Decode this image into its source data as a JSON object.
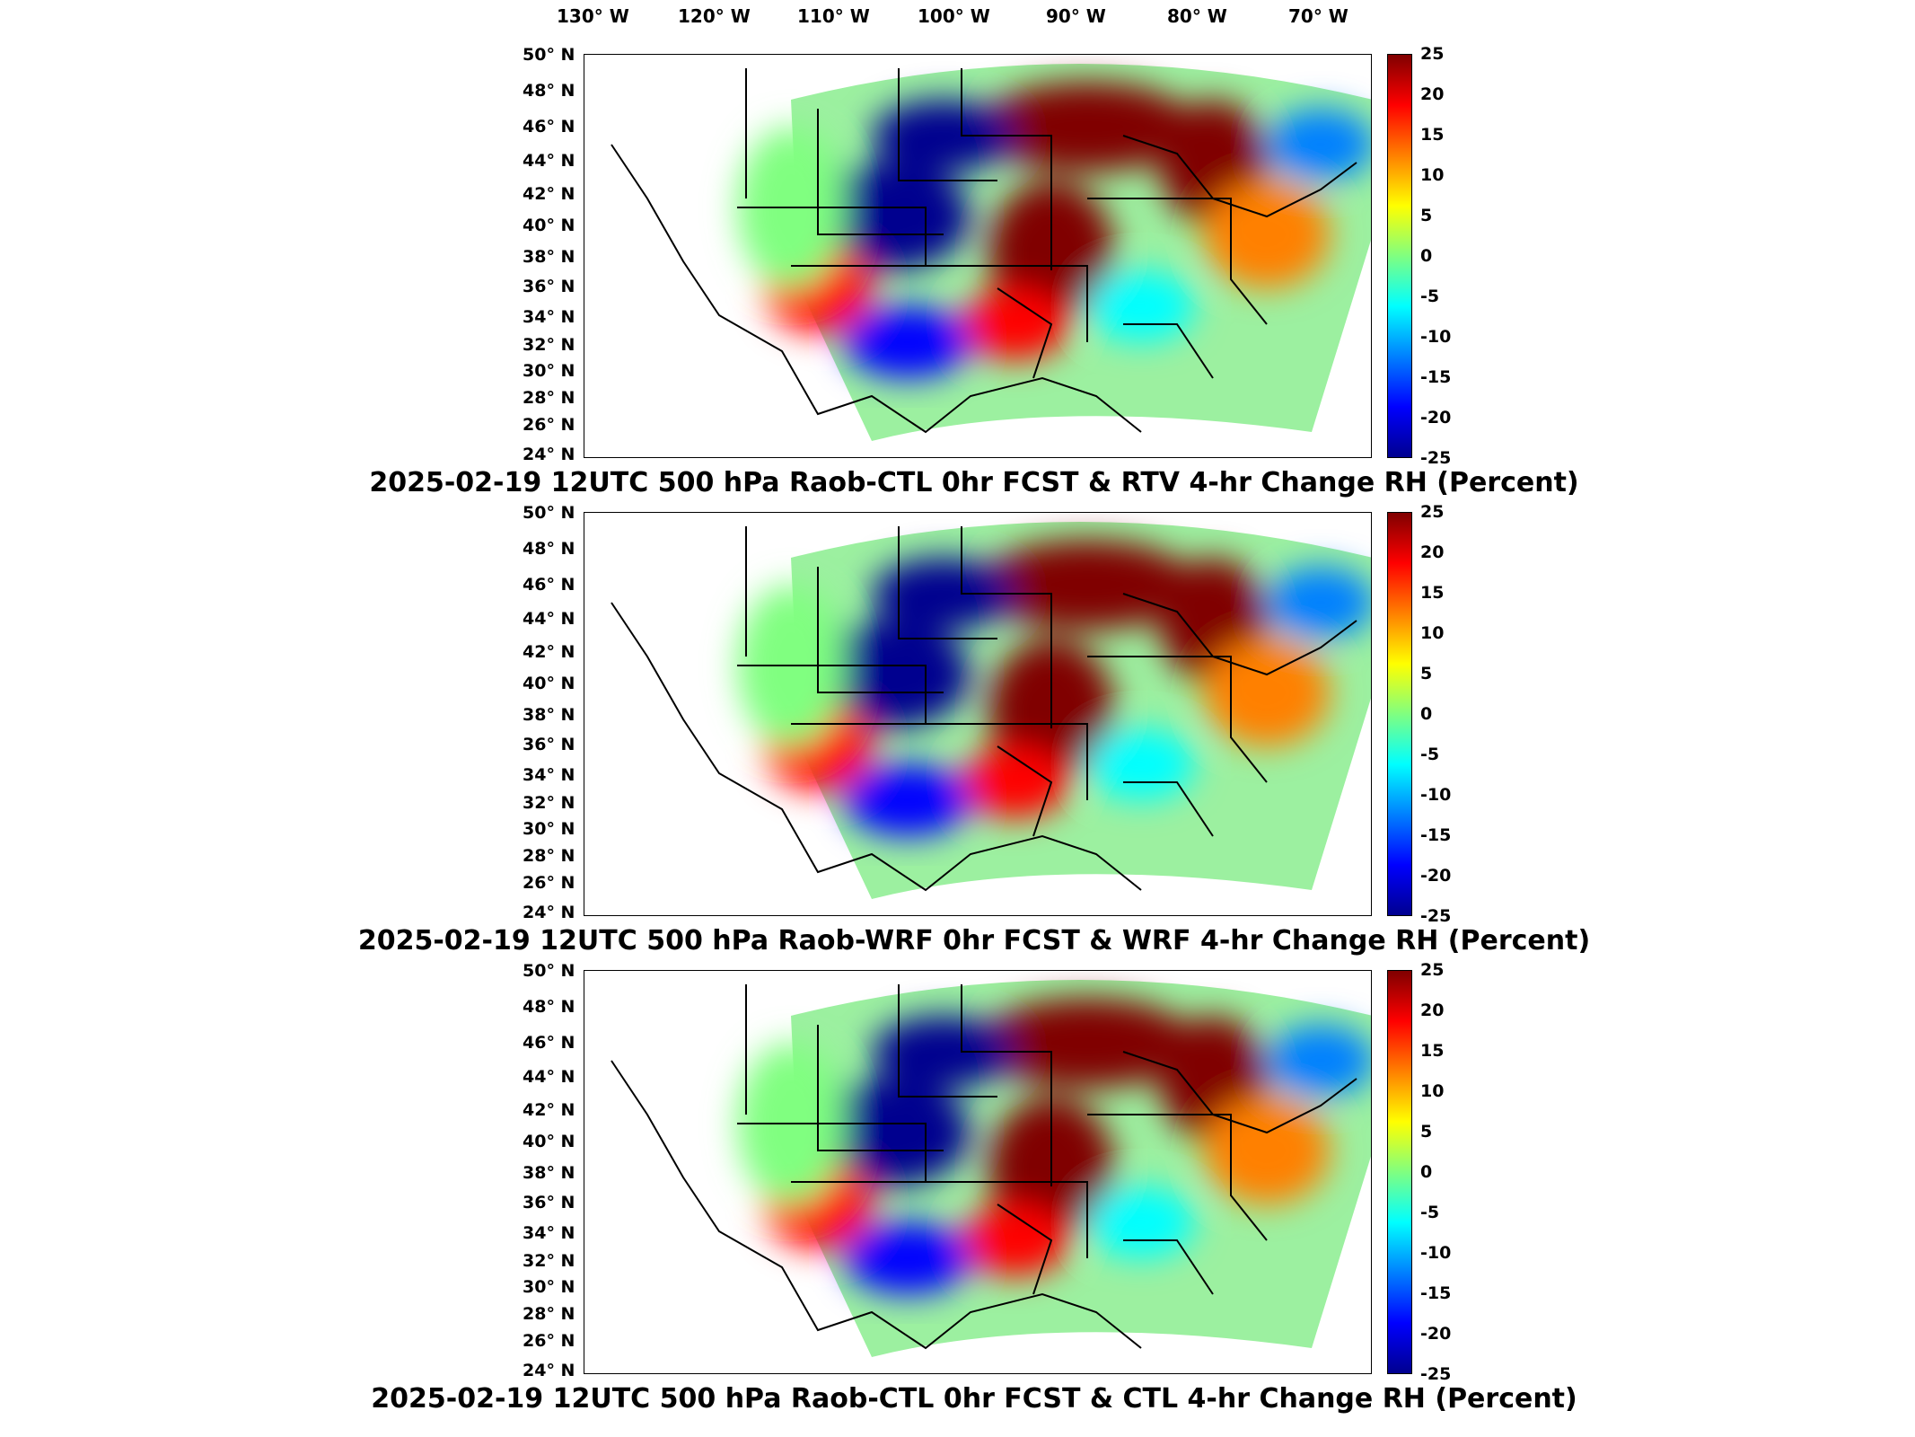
{
  "lon_labels": [
    "130° W",
    "120° W",
    "110° W",
    "100° W",
    "90° W",
    "80° W",
    "70° W"
  ],
  "lat_labels": [
    "50° N",
    "48° N",
    "46° N",
    "44° N",
    "42° N",
    "40° N",
    "38° N",
    "36° N",
    "34° N",
    "32° N",
    "30° N",
    "28° N",
    "26° N",
    "24° N"
  ],
  "colorbar": {
    "ticks": [
      "25",
      "20",
      "15",
      "10",
      "5",
      "0",
      "-5",
      "-10",
      "-15",
      "-20",
      "-25"
    ],
    "colors": [
      "#00008f",
      "#0000ff",
      "#0080ff",
      "#00ffff",
      "#80ff80",
      "#ffff00",
      "#ff8000",
      "#ff0000",
      "#800000"
    ]
  },
  "panels": [
    {
      "title": "2025-02-19 12UTC 500 hPa Raob-CTL 0hr FCST & RTV 4-hr Change RH (Percent)"
    },
    {
      "title": "2025-02-19 12UTC 500 hPa Raob-WRF 0hr FCST & WRF 4-hr Change RH (Percent)"
    },
    {
      "title": "2025-02-19 12UTC 500 hPa Raob-CTL 0hr FCST & CTL 4-hr Change RH (Percent)"
    }
  ]
}
